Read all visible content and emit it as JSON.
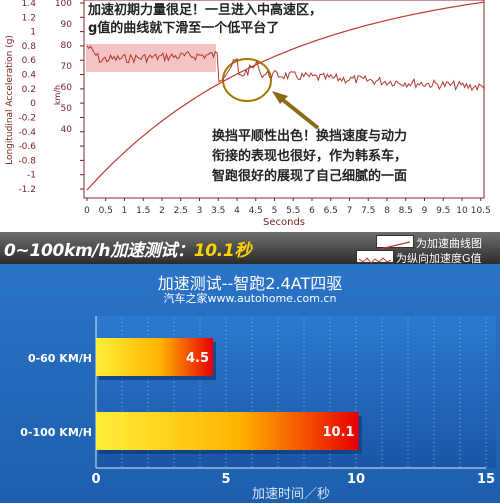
{
  "top_chart": {
    "y_axis_label": "Longitudinal Acceleration (g)",
    "y2_axis_label": "km/h",
    "x_axis_label": "Seconds",
    "y_ticks": [
      "1.4",
      "1.2",
      "1",
      "0.8",
      "0.6",
      "0.4",
      "0.2",
      "0",
      "-0.2",
      "-0.4",
      "-0.6",
      "-0.8",
      "-1",
      "-1.2"
    ],
    "y2_ticks": [
      "100",
      "90",
      "80",
      "70",
      "60",
      "50",
      "40"
    ],
    "x_ticks": [
      "0",
      "0.5",
      "1",
      "1.5",
      "2",
      "2.5",
      "3",
      "3.5",
      "4",
      "4.5",
      "5",
      "5.5",
      "6",
      "6.5",
      "7",
      "7.5",
      "8",
      "8.5",
      "9",
      "9.5",
      "10",
      "10.5"
    ],
    "annotation_top": "加速初期力量很足！一旦进入中高速区，g值的曲线就下滑至一个低平台了",
    "annotation_top_line1": "加速初期力量很足！一旦进入中高速区，",
    "annotation_top_line2": "g值的曲线就下滑至一个低平台了",
    "annotation_mid_line1": "换挡平顺性出色！换挡速度与动力",
    "annotation_mid_line2": "衔接的表现也很好，作为韩系车，",
    "annotation_mid_line3": "智跑很好的展现了自己细腻的一面",
    "colors": {
      "speed_line": "#c0392b",
      "g_line": "#b03a2e",
      "highlight": "#f2b8b8",
      "axis": "#7a1f1f"
    }
  },
  "banner": {
    "title_prefix": "0~100km/h加速测试：",
    "title_value": "10.1秒",
    "legend": [
      {
        "label": "为加速曲线图",
        "icon": "line-swatch"
      },
      {
        "label": "为纵向加速度G值",
        "icon": "wave-swatch"
      }
    ]
  },
  "header": {
    "title": "加速测试--智跑2.4AT四驱",
    "source": "汽车之家www.autohome.com.cn"
  },
  "chart_data": {
    "type": "bar",
    "orientation": "horizontal",
    "title": "加速测试--智跑2.4AT四驱",
    "subtitle": "汽车之家www.autohome.com.cn",
    "categories": [
      "0-60 KM/H",
      "0-100 KM/H"
    ],
    "values": [
      4.5,
      10.1
    ],
    "value_labels": [
      "4.5",
      "10.1"
    ],
    "xlabel": "加速时间／秒",
    "ylabel": "",
    "xlim": [
      0,
      15
    ],
    "x_ticks": [
      "0",
      "5",
      "10",
      "15"
    ],
    "grid": true,
    "colors": {
      "bar_start": "#ffef3a",
      "bar_end": "#e80000",
      "background": "#1f64b4"
    }
  }
}
